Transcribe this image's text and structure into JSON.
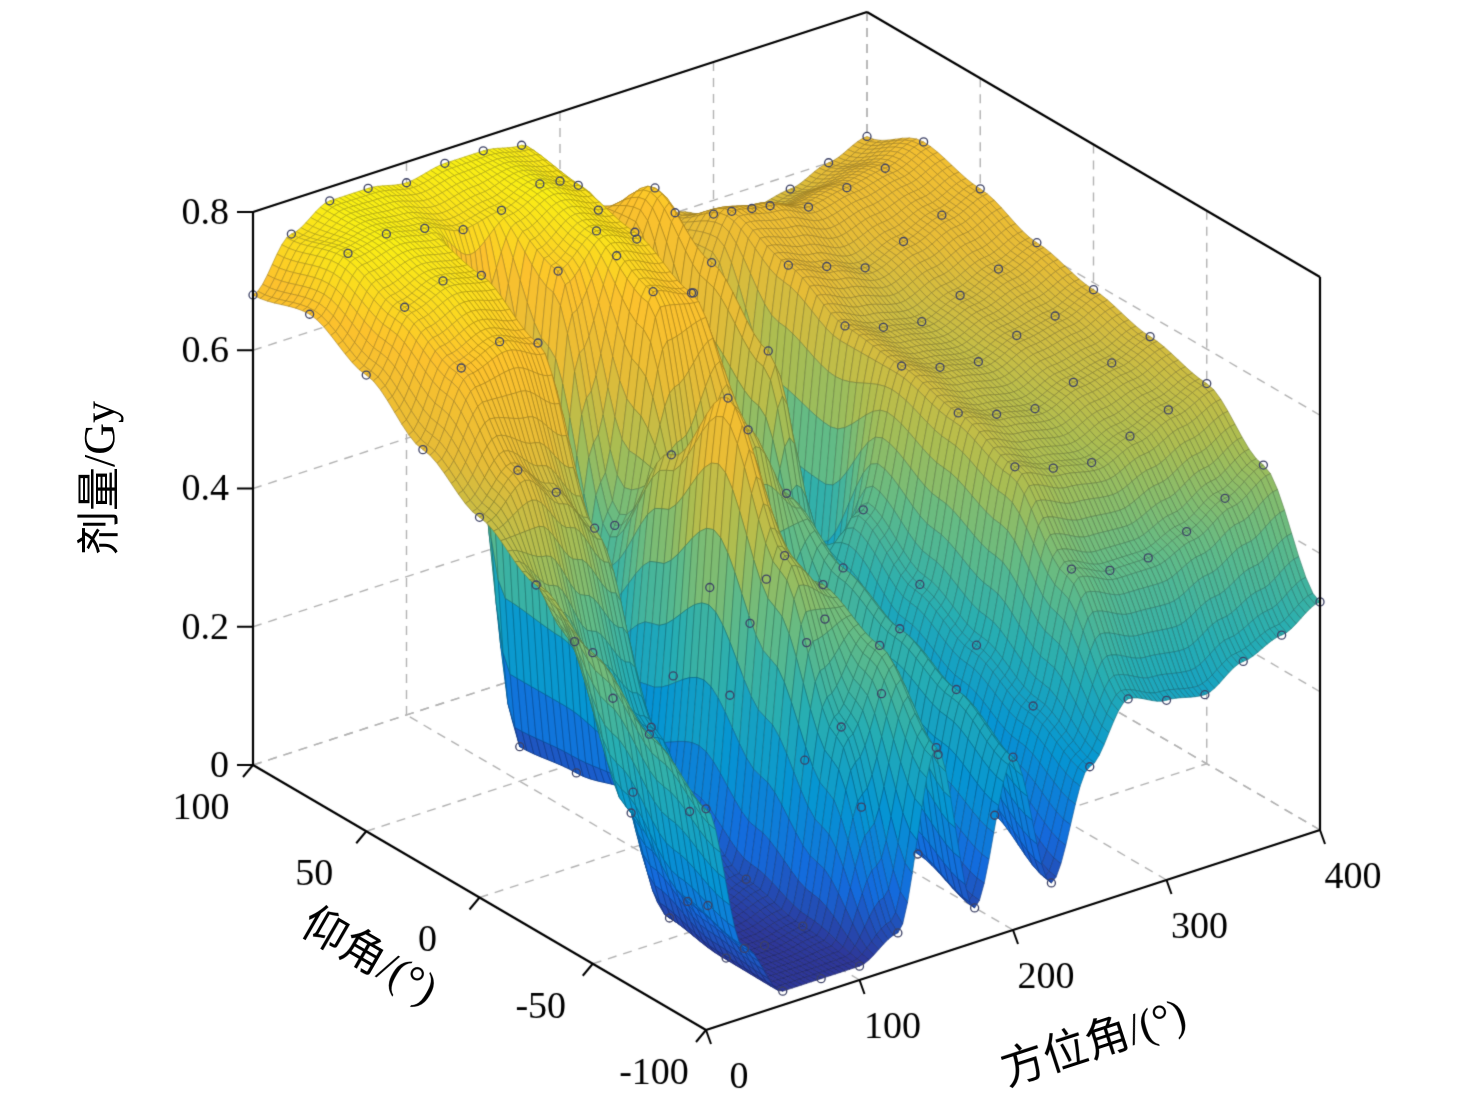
{
  "figure": {
    "background": "#ffffff"
  },
  "colors": {
    "box_edge": "#000000",
    "grid_line": "#b3b3b3",
    "marker": "#3d4266",
    "tick_label": "#000000"
  },
  "chart_data": {
    "type": "surface",
    "title": "",
    "xlabel": "方位角/(°)",
    "ylabel": "仰角/(°)",
    "zlabel": "剂量/Gy",
    "x_ticks": [
      0,
      100,
      200,
      300,
      400
    ],
    "y_ticks": [
      -100,
      -50,
      0,
      50,
      100
    ],
    "z_ticks": [
      0,
      0.2,
      0.4,
      0.6,
      0.8
    ],
    "x_range": [
      0,
      400
    ],
    "y_range": [
      -100,
      100
    ],
    "z_range": [
      0,
      0.8
    ],
    "view": {
      "azimuth_deg": -37.5,
      "elevation_deg": 30
    },
    "grid": "dashed box walls",
    "marker": "o",
    "colormap": "parula",
    "colormap_stops": [
      "#352a87",
      "#146cde",
      "#0696d3",
      "#27aeb3",
      "#61bb88",
      "#abbe52",
      "#e6bc37",
      "#fdc22d",
      "#f9fb0e"
    ],
    "azimuth_values": [
      0,
      25,
      50,
      75,
      100,
      125,
      150,
      175,
      200,
      225,
      250,
      275,
      300,
      325,
      350,
      375,
      400
    ],
    "elevation_values": [
      -100,
      -75,
      -50,
      -25,
      0,
      25,
      50,
      75,
      100
    ],
    "dose_grid_Gy": [
      [
        0.32,
        0.1,
        0.02,
        0.02,
        0.02,
        0.05,
        0.3,
        0.05,
        0.25,
        0.05,
        0.2,
        0.28,
        0.26,
        0.25,
        0.28,
        0.3,
        0.33
      ],
      [
        0.38,
        0.12,
        0.02,
        0.02,
        0.03,
        0.3,
        0.4,
        0.08,
        0.3,
        0.1,
        0.24,
        0.42,
        0.4,
        0.4,
        0.42,
        0.45,
        0.48
      ],
      [
        0.45,
        0.2,
        0.03,
        0.03,
        0.05,
        0.5,
        0.44,
        0.1,
        0.34,
        0.14,
        0.28,
        0.52,
        0.5,
        0.49,
        0.51,
        0.53,
        0.55
      ],
      [
        0.5,
        0.4,
        0.3,
        0.24,
        0.1,
        0.68,
        0.4,
        0.12,
        0.38,
        0.18,
        0.32,
        0.55,
        0.53,
        0.52,
        0.54,
        0.55,
        0.57
      ],
      [
        0.55,
        0.6,
        0.55,
        0.48,
        0.08,
        0.55,
        0.34,
        0.55,
        0.44,
        0.24,
        0.38,
        0.57,
        0.55,
        0.54,
        0.56,
        0.57,
        0.59
      ],
      [
        0.6,
        0.7,
        0.72,
        0.7,
        0.06,
        0.4,
        0.72,
        0.7,
        0.1,
        0.58,
        0.14,
        0.58,
        0.56,
        0.55,
        0.57,
        0.59,
        0.61
      ],
      [
        0.66,
        0.74,
        0.76,
        0.75,
        0.05,
        0.72,
        0.76,
        0.74,
        0.08,
        0.66,
        0.12,
        0.62,
        0.6,
        0.58,
        0.6,
        0.62,
        0.64
      ],
      [
        0.7,
        0.77,
        0.78,
        0.77,
        0.75,
        0.76,
        0.78,
        0.76,
        0.64,
        0.72,
        0.55,
        0.65,
        0.64,
        0.62,
        0.63,
        0.64,
        0.66
      ],
      [
        0.68,
        0.75,
        0.78,
        0.78,
        0.77,
        0.78,
        0.78,
        0.77,
        0.7,
        0.64,
        0.58,
        0.6,
        0.58,
        0.57,
        0.58,
        0.6,
        0.62
      ]
    ]
  }
}
